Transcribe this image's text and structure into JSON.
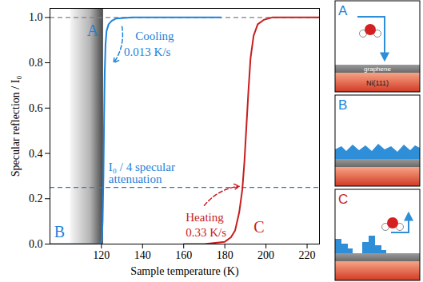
{
  "chart_data": {
    "type": "line",
    "xlabel": "Sample temperature (K)",
    "ylabel": "Specular reflection / I₀",
    "xlim": [
      95,
      226
    ],
    "ylim": [
      0,
      1.04
    ],
    "xticks": [
      120,
      140,
      160,
      180,
      200,
      220
    ],
    "yticks": [
      {
        "value": 0,
        "label": "0.0"
      },
      0.2,
      0.4,
      0.6,
      0.8,
      {
        "value": 1,
        "label": "1.0"
      }
    ],
    "grid": false,
    "series": [
      {
        "name": "Cooling",
        "color": "#1e82d9",
        "x": [
          95,
          110,
          119.5,
          120.2,
          120.6,
          121,
          121.3,
          121.6,
          122,
          122.5,
          123.5,
          125,
          127,
          135,
          150,
          165,
          178
        ],
        "values": [
          0,
          0,
          0,
          0.02,
          0.1,
          0.3,
          0.55,
          0.75,
          0.88,
          0.94,
          0.97,
          0.985,
          0.995,
          1,
          1,
          1,
          1
        ]
      },
      {
        "name": "Heating",
        "color": "#c81e1e",
        "x": [
          160,
          170,
          180,
          183,
          185,
          187,
          188.5,
          189.5,
          190.5,
          191.5,
          192.5,
          194,
          196,
          199,
          203,
          210,
          226
        ],
        "values": [
          0,
          0,
          0.01,
          0.03,
          0.06,
          0.14,
          0.24,
          0.36,
          0.52,
          0.68,
          0.82,
          0.92,
          0.97,
          0.99,
          1,
          1,
          1
        ]
      }
    ],
    "shaded_region": [
      105,
      121
    ],
    "reference_lines": [
      {
        "y": 1,
        "color": "#808080"
      },
      {
        "y": 0.25,
        "color": "#1e82d9"
      }
    ],
    "annotations": [
      {
        "text": "A",
        "x": 113,
        "y": 0.92,
        "series": "Cooling"
      },
      {
        "text": "B",
        "x": 97,
        "y": 0.03,
        "series": "Cooling"
      },
      {
        "text": "C",
        "x": 194,
        "y": 0.05,
        "series": "Heating"
      },
      {
        "text": "Cooling",
        "x": 136.5,
        "y": 0.9,
        "series": "Cooling"
      },
      {
        "text": "0.013 K/s",
        "x": 131,
        "y": 0.83,
        "series": "Cooling"
      },
      {
        "text": "Heating",
        "x": 161,
        "y": 0.1,
        "series": "Heating"
      },
      {
        "text": "0.33 K/s",
        "x": 161,
        "y": 0.035,
        "series": "Heating"
      },
      {
        "text": "I₀ / 4 specular attenuation",
        "x": 123.5,
        "y": 0.27,
        "series": "Cooling"
      }
    ],
    "arrows": [
      {
        "x1": 130,
        "y1": 0.96,
        "x2": 126,
        "y2": 0.8,
        "series": "Cooling"
      },
      {
        "x1": 170,
        "y1": 0.17,
        "x2": 187,
        "y2": 0.255,
        "series": "Heating"
      }
    ]
  },
  "panels": [
    {
      "label": "A",
      "color": "#1e82d9",
      "texts": [
        "graphene",
        "Ni(111)"
      ]
    },
    {
      "label": "B",
      "color": "#1e82d9"
    },
    {
      "label": "C",
      "color": "#c81e1e"
    }
  ]
}
